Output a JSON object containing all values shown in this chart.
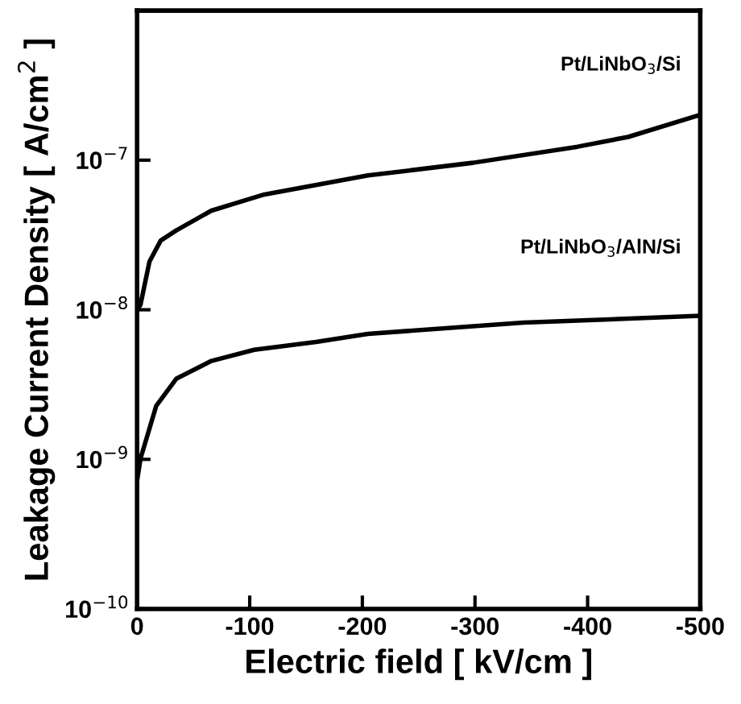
{
  "chart_data": {
    "type": "line",
    "xlabel": "Electric field [ kV/cm ]",
    "ylabel": "Leakage Current Density [ A/cm$^{2}$ ]",
    "log": "y",
    "xlim": [
      0,
      -500
    ],
    "ylim": [
      1e-10,
      1e-06
    ],
    "xticks": [
      0,
      -100,
      -200,
      -300,
      -400,
      -500
    ],
    "yticks": [
      {
        "value": 1e-10,
        "label": "10$^{−10}$"
      },
      {
        "value": 1e-09,
        "label": "10$^{−9}$"
      },
      {
        "value": 1e-08,
        "label": "10$^{−8}$"
      },
      {
        "value": 1e-07,
        "label": "10$^{−7}$"
      }
    ],
    "grid": false,
    "legend": false,
    "marker": "none",
    "line_style": "solid",
    "series": [
      {
        "name": "Pt/LiNbO$_{3}$/Si",
        "color": "#000000",
        "x": [
          0,
          -3,
          -11,
          -21,
          -35,
          -66,
          -113,
          -205,
          -298,
          -391,
          -436,
          -499
        ],
        "values": [
          1e-08,
          1.08e-08,
          2.1e-08,
          2.9e-08,
          3.4e-08,
          4.6e-08,
          5.9e-08,
          7.9e-08,
          9.6e-08,
          1.23e-07,
          1.43e-07,
          2e-07
        ]
      },
      {
        "name": "Pt/LiNbO$_{3}$/AlN/Si",
        "color": "#000000",
        "x": [
          0,
          -3,
          -17,
          -35,
          -66,
          -104,
          -159,
          -205,
          -343,
          -499
        ],
        "values": [
          7.2e-10,
          1.01e-09,
          2.28e-09,
          3.47e-09,
          4.55e-09,
          5.4e-09,
          6.1e-09,
          6.9e-09,
          8.2e-09,
          9.1e-09
        ]
      }
    ]
  }
}
